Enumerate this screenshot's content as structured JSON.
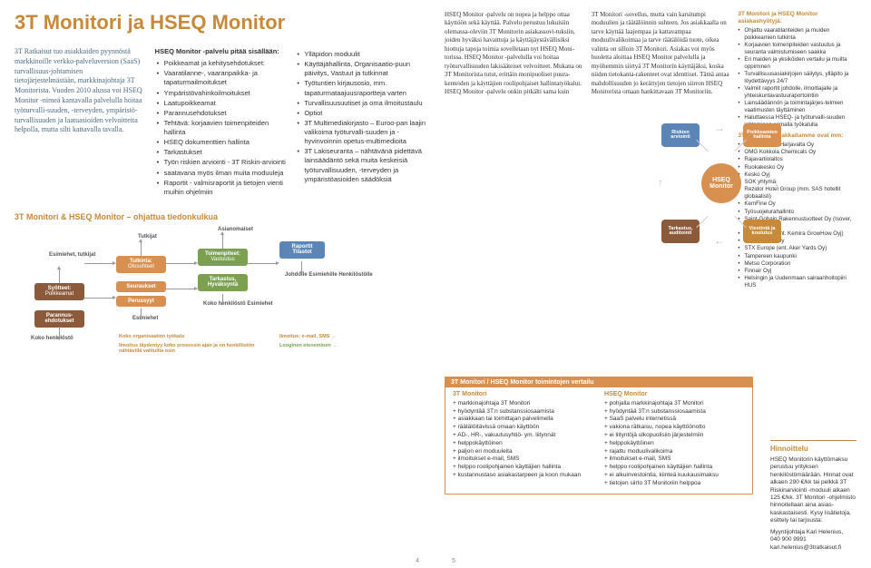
{
  "title": "3T Monitori ja HSEQ Monitor",
  "left": {
    "col1": "3T Ratkaisut tuo asiakkaiden pyynnöstä markkinoille verkko-palveluversion (SaaS) turvallisuus-johtamisen tietojärjestelmästään, markkinajohtaja 3T Monitorista. Vuoden 2010 alussa voi HSEQ Monitor -nimeä kantavalla palvelulla hoitaa työturvalli-suuden, -terveyden, ympäristö-turvallisuuden ja laatuasioiden velvoitteita helpolla, mutta silti kattavalla tavalla.",
    "col2_head": "HSEQ Monitor -palvelu pitää sisällään:",
    "col2_items": [
      "Poikkeamat ja kehitysehdotukset:",
      "Vaaratilanne-, vaaranpaikka- ja tapaturmailmoitukset",
      "Ympäristövahinkoilmoitukset",
      "Laatupoikkeamat",
      "Parannusehdotukset",
      "Tehtävä: korjaavien toimenpiteiden hallinta",
      "HSEQ dokumenttien hallinta",
      "Tarkastukset",
      "Työn riskien arviointi - 3T Riskin-arviointi",
      "saatavana myös ilman muita moduuleja",
      "Raportit - valmisraportit ja tietojen vienti muihin ohjelmiin"
    ],
    "col3_items": [
      "Ylläpidon moduulit",
      "Käyttäjähallinta, Organisaatio-puun päivitys, Vastuut ja tutkinnat",
      "Työtuntien kirjausosio, mm. tapaturmataajuusraportteja varten",
      "Turvallisuusuutiset ja oma ilmoitustaulu",
      "Optiot",
      "3T Multimediakirjasto – Euroo-pan laajin valikoima työturvalli-suuden ja -hyvinvoinnin opetus-multimedioita",
      "3T Lakiseuranta – nähtävänä pidettävä lainsäädäntö sekä muita keskeisiä työturvallisuuden, -terveyden ja ympäristöasioiden säädöksiä"
    ],
    "flow_title": "3T Monitori & HSEQ Monitor – ohjattua tiedonkulkua",
    "flow": {
      "syotteet": "Syötteet:",
      "poikkeamat": "Poikkeamat",
      "parannus": "Parannus-\nehdotukset",
      "koko": "Koko henkilöstö",
      "esimiehet": "Esimiehet,\ntutkijat",
      "tutkijat": "Tutkijat",
      "tutkinta": "Tutkinta:",
      "olosuhteet": "Olosuhteet",
      "seuraukset": "Seuraukset",
      "perussyyt": "Perussyyt",
      "esim2": "Esimiehet",
      "asian": "Asianomaiset",
      "toimhead": "Toimenpiteet:",
      "vastuutus": "Vastuutus",
      "tarkastus": "Tarkastus,\nHyväksyntä",
      "kokoh": "Koko henkilöstö\nEsimiehet",
      "raportit": "Raportit\nTilastot",
      "johdolle": "Johdolle\nEsimiehille\nHenkilöstölle",
      "cap1": "Koko organisaation työkalu",
      "cap2": "Ilmoitus täydentyy koko prosessin ajan ja on henkilöstön nähtävillä valituilta osin",
      "cap3": "Ilmoitus: e-mail, SMS",
      "cap4": "Looginen eteneminen"
    }
  },
  "right": {
    "col1": "HSEQ Monitor -palvelu on nopea ja helppo ottaa käyttöön sekä käyttää. Palvelu perustuu lukuisiin olemassa-oleviin 3T Monitorin asiakassovi-tuksiin, joiden hyväksi havaittuja ja käyttäjäystävällisiksi hiottuja tapoja toimia sovelletaan nyt HSEQ Moni-torissa. HSEQ Monitor -palvelulla voi hoitaa työturvallisuuden lakisääteiset velvoitteet. Mukana on 3T Monitorista tutut, erittäin monipuoliset puura-kenteiden ja käyttäjien roolipohjaiset hallintatyökalut. HSEQ Monitor -palvelu onkin pitkälti sama kuin",
    "col2": "3T Monitori -sovellus, mutta vain karsitumpi moduulien ja räätälöinnin suhteen. Jos asiakkaalla on tarve käyttää laajempaa ja kattavampaa moduulivalikoimaa ja tarve räätälöidä tuote, oikea valinta on silloin 3T Monitori. Asiakas voi myös huoletta aloittaa HSEQ Monitor palvelulla ja myöhemmin siirtyä 3T Monitorin käyttäjäksi, koska niiden tietokanta-rakenteet ovat identtiset. Tämä antaa mahdollisuuden jo kerättyjen tietojen siirron HSEQ Monitorista omaan hankittavaan 3T Monitoriin.",
    "col3_head": "3T Monitori ja HSEQ Monitor asiakashyötyjä:",
    "col3_items": [
      "Ohjattu vaaratilanteiden ja muiden poikkeamien tutkinta",
      "Korjaavien toimenpiteiden vastuutus ja seuranta valmistumiseen saakka",
      "Eri maiden ja yksiköiden vertailu ja muilta oppiminen",
      "Turvallisuusasiakirjojen säilytys, ylläpito ja löydettävyys 24/7",
      "Valmiit raportit johdolle, ilmoittajalle ja yhteiskuntavastuuraportointiin",
      "Lainsäädännön ja toimintajärjes-telmien vaatimusten täyttäminen",
      "Haluttaessa HSEQ- ja työturvalli-suuden johtaminen samalla työkalulla"
    ],
    "col3_head2": "3T Monitori -asiakkaitamme ovat mm:",
    "col3_items2": [
      "Norilsk Nickel Harjavalta Oy",
      "OMG Kokkola Chemicals Oy",
      "Rajavartiolaitos",
      "Ruokakesko Oy",
      "Kesko Oyj",
      "SOK yhtymä",
      "Rezidor Hotel Group (mm. SAS hotellit globaalisti)",
      "KemFine Oy",
      "Työsuojelurahallinto",
      "Saint-Gobain Rakennustuotteet Oy (Isover, Gyproc)",
      "Yara Suomi (ent. Kemira GrowHow Oyj)",
      "SRV Viitoset Oy",
      "STX Europe (ent. Aker Yards Oy)",
      "Tampereen kaupunki",
      "Metso Corporation",
      "Finnair Oyj",
      "Helsingin ja Uudenmaan sairaanhoitopiiri HUS"
    ],
    "wheel": {
      "hub": "HSEQ\nMonitor",
      "n1": "Riskien\narviointi",
      "n2": "Poikkeamien\nhallinta",
      "n3": "Viestintä ja\nkoulutus",
      "n4": "Tarkastus,\nauditointi"
    },
    "cmp_title": "3T Monitori / HSEQ Monitor toimintojen vertailu",
    "cmp_h1": "3T Monitori",
    "cmp_h2": "HSEQ Monitor",
    "cmp_l": [
      "+ markkinajohtaja 3T Monitori",
      "+ hyödyntää 3T:n substanssiosaamista",
      "+ asiakkaan tai toimittajan palvelimella",
      "+ räätälöitävissä omaan käyttöön",
      "+ AD-, HR-, vakuutusyhtiö- ym. liitynnät",
      "+ helppokäyttöinen",
      "+ paljon eri moduuleita",
      "+ ilmoitukset e-mail, SMS",
      "+ helppo roolipohjainen käyttäjien hallinta",
      "+ kustannustaso asiakastarpeen ja koon mukaan"
    ],
    "cmp_r": [
      "+ pohjalla markkinajohtaja 3T Monitori",
      "+ hyödyntää 3T:n substanssiosaamista",
      "+ SaaS palvelu internetissä",
      "+ vakiona rätkaisu, nopea käyttöönotto",
      "+ ei liityntöjä ulkopuolisiin järjestelmiin",
      "+ helppokäyttöinen",
      "+ rajattu moduulivalikoima",
      "+ ilmoitukset e-mail, SMS",
      "+ helppo roolipohjainen käyttäjien hallinta",
      "+ ei alkuinvestointia, kiinteä kuukausimaksu",
      "+ tietojen siirto 3T Monitoriin helppoa"
    ],
    "price_title": "Hinnoittelu",
    "price_body": "HSEQ Monitorin käyttömaksu perustuu yrityksen henkilöstömäärään. Hinnat ovat alkaen 290 €/kk tai pelkkä 3T Riskinarviointi -moduuli alkaen 125 €/kk. 3T Monitori -ohjelmisto hinnoitellaan aina asias-kaskastaisesti. Kysy lisätietoja, esittely tai tarjousta:",
    "price_contact": "Myyntijohtaja Kari Helenius,\n040 900 9991\nkari.helenius@3tratkaisut.fi"
  },
  "pg_left": "4",
  "pg_right": "5"
}
